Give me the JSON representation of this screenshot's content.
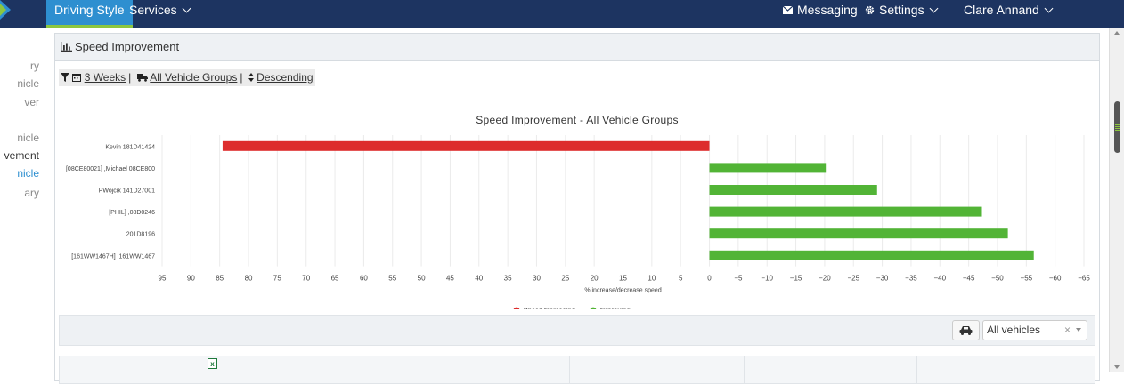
{
  "nav": {
    "driving_style": "Driving Style",
    "services": "Services",
    "messaging": "Messaging",
    "settings": "Settings",
    "user": "Clare Annand"
  },
  "sidebar": {
    "items": [
      {
        "label": "ry"
      },
      {
        "label": "nicle"
      },
      {
        "label": "ver"
      },
      {
        "label": "nicle"
      },
      {
        "label": "vement"
      },
      {
        "label": "nicle"
      },
      {
        "label": "ary"
      }
    ]
  },
  "panel": {
    "title": "Speed Improvement"
  },
  "filter": {
    "period": "3 Weeks",
    "groups": "All Vehicle Groups",
    "order": "Descending",
    "sep": "|"
  },
  "chart_data": {
    "type": "bar",
    "orientation": "horizontal",
    "title": "Speed Improvement - All Vehicle Groups",
    "xlabel": "% increase/decrease speed",
    "categories": [
      "Kevin 181D41424",
      "[08CE80021] ,Michael 08CE800",
      "PWojcik 141D27001",
      "[PHIL] ,08D0246",
      "201D8196",
      "[161WW1467H] ,161WW1467"
    ],
    "values": [
      84.5,
      -20.2,
      -29.1,
      -47.3,
      -51.8,
      -56.3
    ],
    "colors": [
      "#dd2c2c",
      "#52b436",
      "#52b436",
      "#52b436",
      "#52b436",
      "#52b436"
    ],
    "xlim": [
      95,
      -65
    ],
    "xticks": [
      95,
      90,
      85,
      80,
      75,
      70,
      65,
      60,
      55,
      50,
      45,
      40,
      35,
      30,
      25,
      20,
      15,
      10,
      5,
      0,
      -5,
      -10,
      -15,
      -20,
      -25,
      -30,
      -35,
      -40,
      -45,
      -50,
      -55,
      -60,
      -65
    ],
    "legend": [
      {
        "name": "Speed Increasing",
        "color": "#dd2c2c"
      },
      {
        "name": "Improving",
        "color": "#52b436"
      }
    ],
    "legend_position": "bottom",
    "grid": true
  },
  "vehicles": {
    "selected": "All vehicles",
    "clear": "×"
  }
}
